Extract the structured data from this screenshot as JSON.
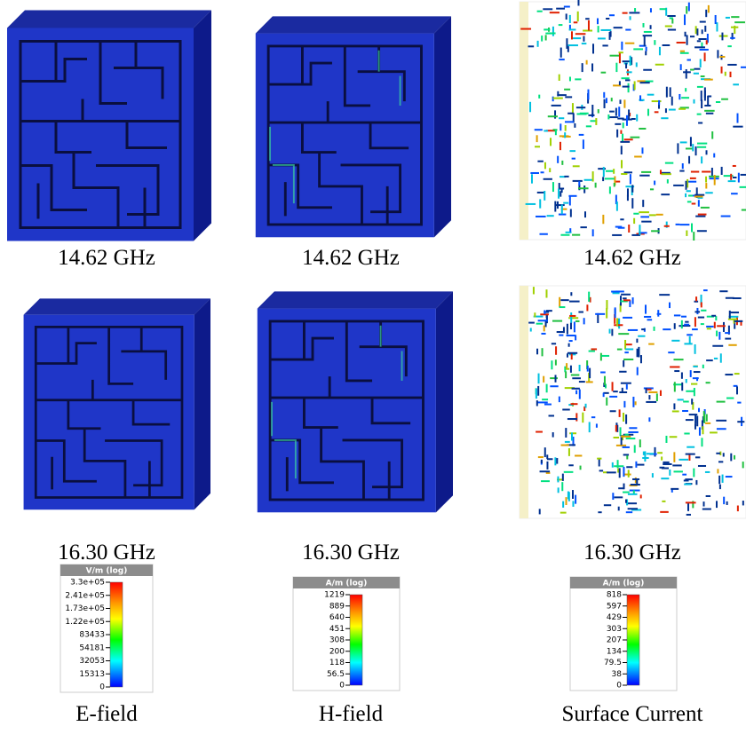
{
  "figure": {
    "rows": [
      {
        "captions": [
          "14.62 GHz",
          "14.62 GHz",
          "14.62 GHz"
        ]
      },
      {
        "captions": [
          "16.30 GHz",
          "16.30 GHz",
          "16.30 GHz"
        ]
      }
    ],
    "colorbars": [
      {
        "title": "V/m (log)",
        "ticks": [
          "3.3e+05",
          "2.41e+05",
          "1.73e+05",
          "1.22e+05",
          "83433",
          "54181",
          "32053",
          "15313",
          "0"
        ]
      },
      {
        "title": "A/m (log)",
        "ticks": [
          "1219",
          "889",
          "640",
          "451",
          "308",
          "200",
          "118",
          "56.5",
          "0"
        ]
      },
      {
        "title": "A/m (log)",
        "ticks": [
          "818",
          "597",
          "429",
          "303",
          "207",
          "134",
          "79.5",
          "38",
          "0"
        ]
      }
    ],
    "labels": [
      "E-field",
      "H-field",
      "Surface Current"
    ]
  }
}
